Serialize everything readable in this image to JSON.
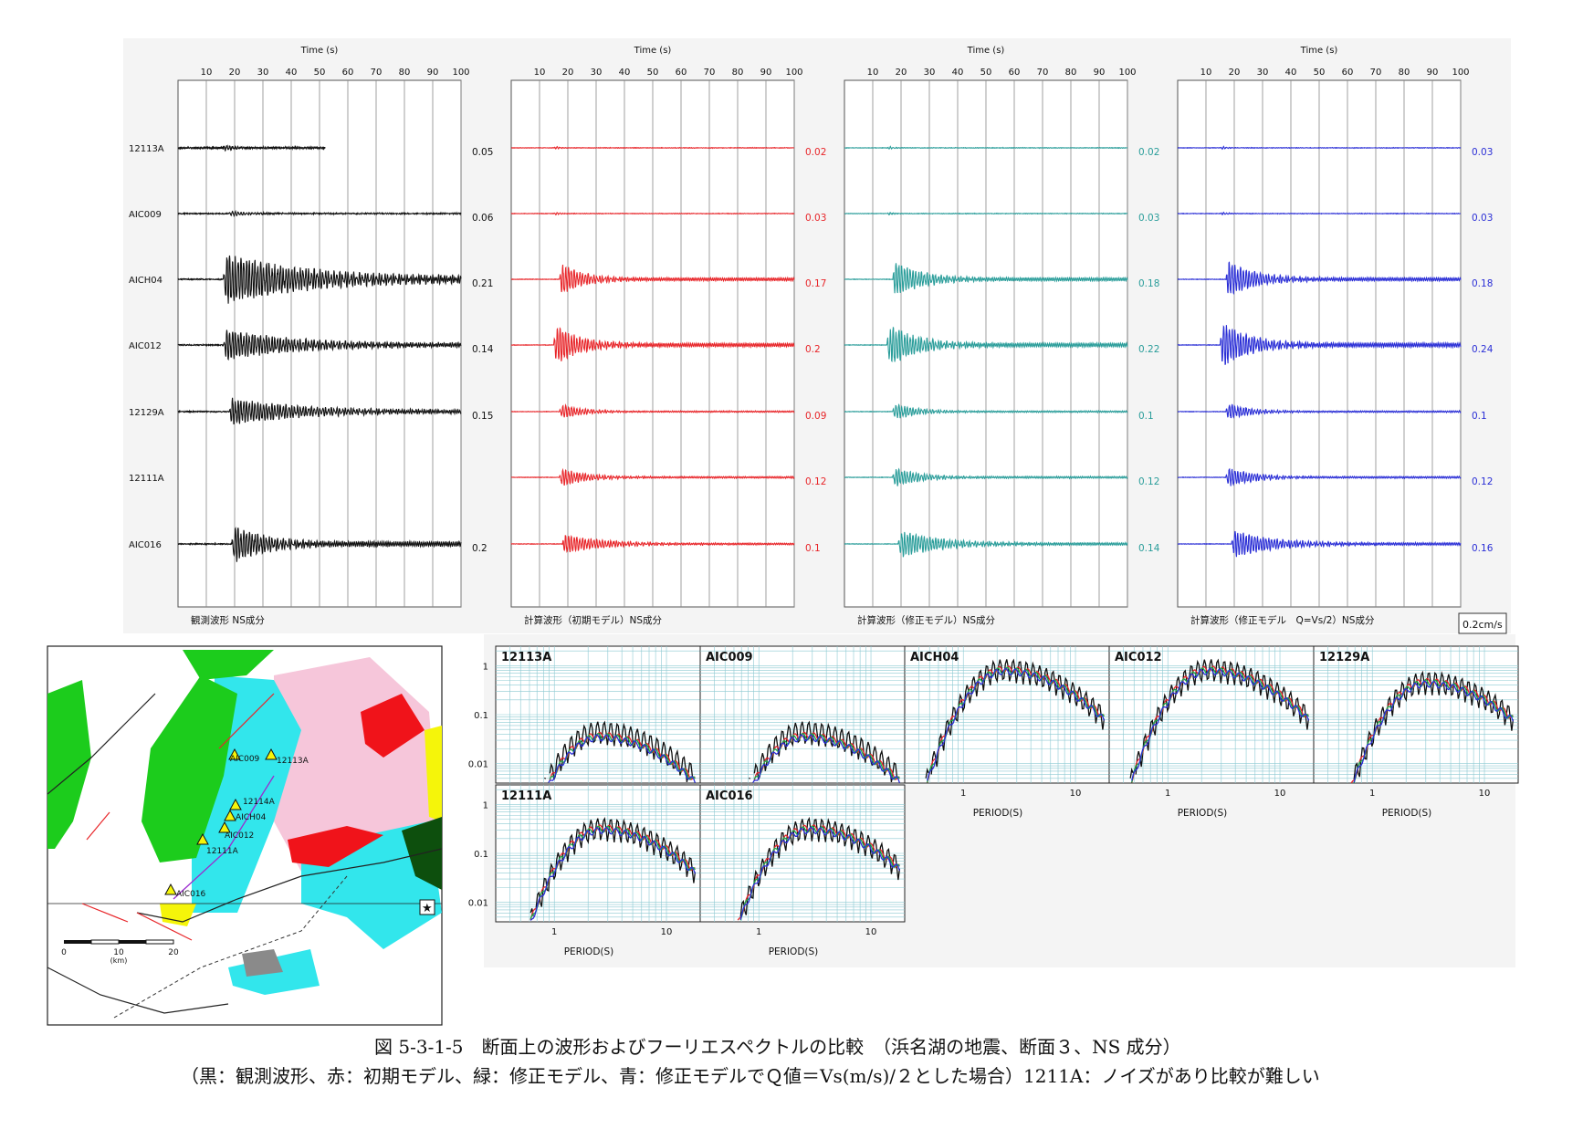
{
  "waveform_panels": [
    {
      "key": "obs",
      "title": "観測波形 NS成分",
      "color": "#111111",
      "peaks": [
        "0.05",
        "0.06",
        "0.21",
        "0.14",
        "0.15",
        "",
        "0.2"
      ]
    },
    {
      "key": "init",
      "title": "計算波形（初期モデル）NS成分",
      "color": "#e8262a",
      "peaks": [
        "0.02",
        "0.03",
        "0.17",
        "0.2",
        "0.09",
        "0.12",
        "0.1"
      ]
    },
    {
      "key": "mod",
      "title": "計算波形（修正モデル）NS成分",
      "color": "#2a9d9a",
      "peaks": [
        "0.02",
        "0.03",
        "0.18",
        "0.22",
        "0.1",
        "0.12",
        "0.14"
      ]
    },
    {
      "key": "q",
      "title": "計算波形（修正モデル　Q=Vs/2）NS成分",
      "color": "#2b2fd6",
      "peaks": [
        "0.03",
        "0.03",
        "0.18",
        "0.24",
        "0.1",
        "0.12",
        "0.16"
      ]
    }
  ],
  "stations": [
    "12113A",
    "AIC009",
    "AICH04",
    "AIC012",
    "12129A",
    "12111A",
    "AIC016"
  ],
  "time_axis": {
    "label": "Time (s)",
    "ticks": [
      "10",
      "20",
      "30",
      "40",
      "50",
      "60",
      "70",
      "80",
      "90",
      "100"
    ]
  },
  "scale_label": "0.2cm/s",
  "spectra": {
    "xlabel": "PERIOD(S)",
    "y_ticks": [
      "1",
      "0.1",
      "0.01"
    ],
    "x_ticks": [
      "1",
      "10"
    ],
    "colors": {
      "observed": "#111111",
      "initial": "#e8262a",
      "modified": "#1aa84a",
      "q_modified": "#2b2fd6"
    },
    "panels": [
      "12113A",
      "AIC009",
      "AICH04",
      "AIC012",
      "12129A",
      "12111A",
      "AIC016"
    ]
  },
  "map": {
    "station_labels": [
      "AIC009",
      "12113A",
      "12114A",
      "AICH04",
      "AIC012",
      "12111A",
      "AIC016"
    ],
    "scale_ticks": [
      "0",
      "10",
      "20"
    ],
    "scale_unit": "(km)"
  },
  "chart_data": {
    "type": "line",
    "title": "図 5-3-1-5　断面上の波形およびフーリエスペクトルの比較　（浜名湖の地震、断面３、NS 成分）",
    "xlabel": "Time (s)",
    "xlim": [
      0,
      100
    ],
    "categories": [
      "12113A",
      "AIC009",
      "AICH04",
      "AIC012",
      "12129A",
      "12111A",
      "AIC016"
    ],
    "series": [
      {
        "name": "観測波形",
        "values": [
          0.05,
          0.06,
          0.21,
          0.14,
          0.15,
          null,
          0.2
        ]
      },
      {
        "name": "初期モデル",
        "values": [
          0.02,
          0.03,
          0.17,
          0.2,
          0.09,
          0.12,
          0.1
        ]
      },
      {
        "name": "修正モデル",
        "values": [
          0.02,
          0.03,
          0.18,
          0.22,
          0.1,
          0.12,
          0.14
        ]
      },
      {
        "name": "修正モデルでQ値＝Vs(m/s)/２とした場合",
        "values": [
          0.03,
          0.03,
          0.18,
          0.24,
          0.1,
          0.12,
          0.16
        ]
      }
    ],
    "spectrum_xlabel": "PERIOD(S)"
  },
  "caption": {
    "line1": "図 5-3-1-5　断面上の波形およびフーリエスペクトルの比較　（浜名湖の地震、断面３、NS 成分）",
    "line2": "（黒：観測波形、赤：初期モデル、緑：修正モデル、青：修正モデルでＱ値＝Vs(m/s)/２とした場合）1211A：ノイズがあり比較が難しい"
  }
}
